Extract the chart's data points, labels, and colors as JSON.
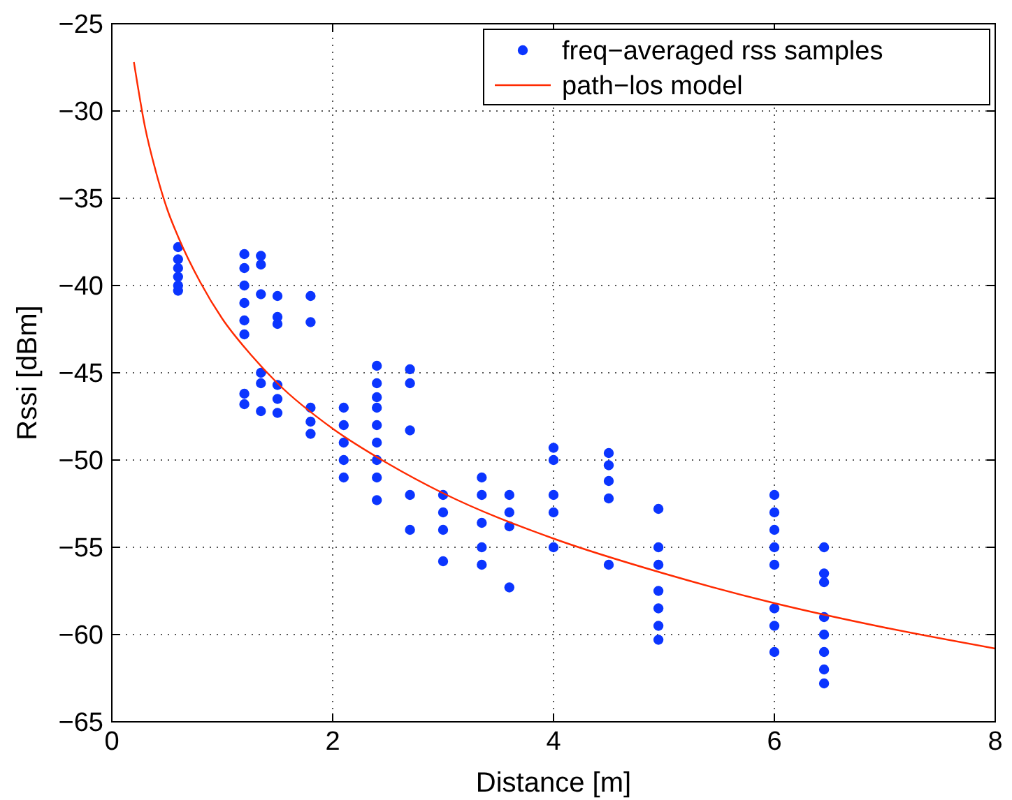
{
  "chart_data": {
    "type": "scatter",
    "xlabel": "Distance [m]",
    "ylabel": "Rssi [dBm]",
    "xlim": [
      0,
      8
    ],
    "ylim": [
      -65,
      -25
    ],
    "xticks": [
      0,
      2,
      4,
      6,
      8
    ],
    "yticks": [
      -65,
      -60,
      -55,
      -50,
      -45,
      -40,
      -35,
      -30,
      -25
    ],
    "grid": true,
    "legend": "top right",
    "series": [
      {
        "name": "freq−averaged rss samples",
        "marker": "circle",
        "color": "#0b35ff",
        "x": [
          0.6,
          0.6,
          0.6,
          0.6,
          0.6,
          0.6,
          1.2,
          1.2,
          1.2,
          1.2,
          1.2,
          1.2,
          1.2,
          1.2,
          1.35,
          1.35,
          1.35,
          1.35,
          1.35,
          1.35,
          1.5,
          1.5,
          1.5,
          1.5,
          1.5,
          1.5,
          1.8,
          1.8,
          1.8,
          1.8,
          1.8,
          2.1,
          2.1,
          2.1,
          2.1,
          2.1,
          2.4,
          2.4,
          2.4,
          2.4,
          2.4,
          2.4,
          2.4,
          2.4,
          2.4,
          2.7,
          2.7,
          2.7,
          2.7,
          2.7,
          3.0,
          3.0,
          3.0,
          3.0,
          3.35,
          3.35,
          3.35,
          3.35,
          3.35,
          3.6,
          3.6,
          3.6,
          3.6,
          4.0,
          4.0,
          4.0,
          4.0,
          4.0,
          4.5,
          4.5,
          4.5,
          4.5,
          4.5,
          4.95,
          4.95,
          4.95,
          4.95,
          4.95,
          4.95,
          4.95,
          6.0,
          6.0,
          6.0,
          6.0,
          6.0,
          6.0,
          6.0,
          6.0,
          6.45,
          6.45,
          6.45,
          6.45,
          6.45,
          6.45,
          6.45,
          6.45
        ],
        "values": [
          -37.8,
          -38.5,
          -39,
          -39.5,
          -40,
          -40.3,
          -38.2,
          -39,
          -40,
          -41,
          -42,
          -42.8,
          -46.2,
          -46.8,
          -38.3,
          -38.8,
          -40.5,
          -45,
          -45.6,
          -47.2,
          -40.6,
          -41.8,
          -42.2,
          -45.7,
          -46.5,
          -47.3,
          -40.6,
          -42.1,
          -47,
          -47.8,
          -48.5,
          -47,
          -48,
          -49,
          -50,
          -51,
          -44.6,
          -45.6,
          -46.4,
          -47,
          -48,
          -49,
          -50,
          -51,
          -52.3,
          -44.8,
          -45.6,
          -48.3,
          -52,
          -54,
          -52,
          -53,
          -54,
          -55.8,
          -51,
          -52,
          -53.6,
          -55,
          -56,
          -52,
          -53,
          -53.8,
          -57.3,
          -49.3,
          -50,
          -52,
          -53,
          -55,
          -49.6,
          -50.3,
          -51.2,
          -52.2,
          -56,
          -52.8,
          -55,
          -56,
          -57.5,
          -58.5,
          -59.5,
          -60.3,
          -52,
          -53,
          -54,
          -55,
          -56,
          -58.5,
          -59.5,
          -61,
          -55,
          -56.5,
          -57,
          -59,
          -60,
          -61,
          -62,
          -62.8
        ]
      },
      {
        "name": "path−los model",
        "type": "line",
        "line_style": "solid",
        "color": "#ff2a00",
        "x": [
          0.2,
          0.3,
          0.4,
          0.5,
          0.6,
          0.8,
          1,
          1.25,
          1.5,
          2,
          2.5,
          3,
          4,
          5,
          6,
          7,
          8
        ],
        "values": [
          -27.2,
          -30.9,
          -33.5,
          -35.6,
          -37.2,
          -39.8,
          -41.9,
          -43.9,
          -45.6,
          -48.2,
          -50.2,
          -51.9,
          -54.5,
          -56.5,
          -58.2,
          -59.6,
          -60.8
        ]
      }
    ]
  }
}
